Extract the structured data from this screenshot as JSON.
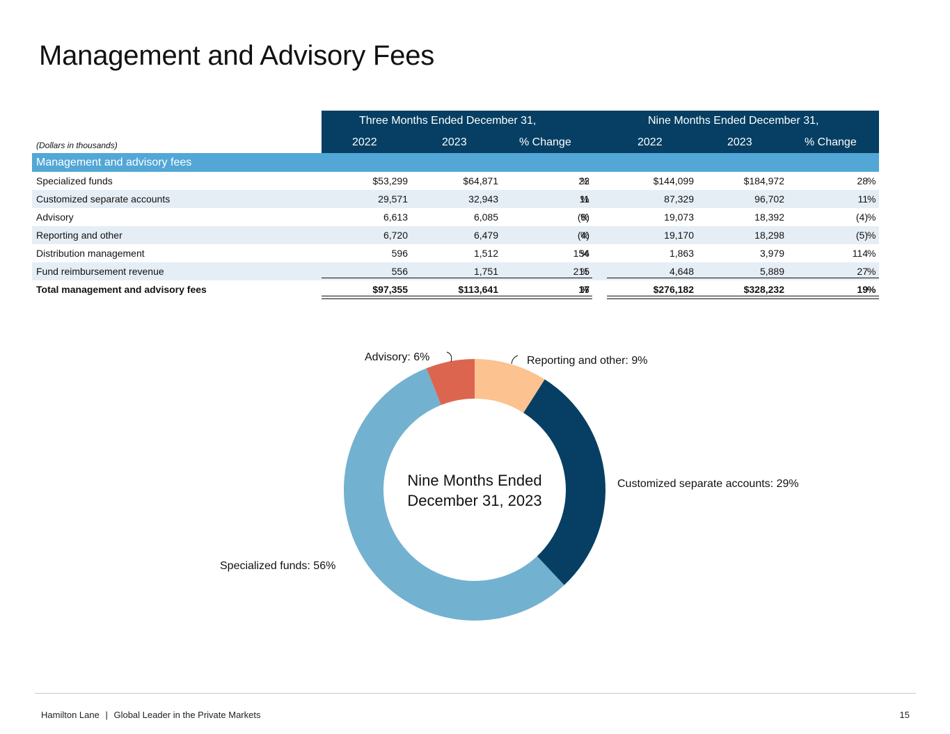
{
  "title": "Management and Advisory Fees",
  "table": {
    "group_three": "Three Months Ended December 31,",
    "group_nine": "Nine Months Ended December 31,",
    "units_note": "(Dollars in thousands)",
    "col_headers": [
      "2022",
      "2023",
      "% Change",
      "2022",
      "2023",
      "% Change"
    ],
    "section_label": "Management and advisory fees",
    "pct_sign": "%",
    "rows": [
      {
        "label": "Specialized funds",
        "q22": "$53,299",
        "q23": "$64,871",
        "qchg": "22",
        "n22": "$144,099",
        "n23": "$184,972",
        "nchg": "28"
      },
      {
        "label": "Customized separate accounts",
        "q22": "29,571",
        "q23": "32,943",
        "qchg": "11",
        "n22": "87,329",
        "n23": "96,702",
        "nchg": "11"
      },
      {
        "label": "Advisory",
        "q22": "6,613",
        "q23": "6,085",
        "qchg": "(8)",
        "n22": "19,073",
        "n23": "18,392",
        "nchg": "(4)"
      },
      {
        "label": "Reporting and other",
        "q22": "6,720",
        "q23": "6,479",
        "qchg": "(4)",
        "n22": "19,170",
        "n23": "18,298",
        "nchg": "(5)"
      },
      {
        "label": "Distribution management",
        "q22": "596",
        "q23": "1,512",
        "qchg": "154",
        "n22": "1,863",
        "n23": "3,979",
        "nchg": "114"
      },
      {
        "label": "Fund reimbursement revenue",
        "q22": "556",
        "q23": "1,751",
        "qchg": "215",
        "n22": "4,648",
        "n23": "5,889",
        "nchg": "27"
      }
    ],
    "total": {
      "label": "Total management and advisory fees",
      "q22": "$97,355",
      "q23": "$113,641",
      "qchg": "17",
      "n22": "$276,182",
      "n23": "$328,232",
      "nchg": "19"
    }
  },
  "chart_data": {
    "type": "pie",
    "title": "Nine Months Ended December 31, 2023",
    "center_label_line1": "Nine Months Ended",
    "center_label_line2": "December 31, 2023",
    "slices": [
      {
        "name": "Reporting and other",
        "value": 9,
        "label": "Reporting and other: 9%",
        "color": "#fcc290"
      },
      {
        "name": "Customized separate accounts",
        "value": 29,
        "label": "Customized separate accounts: 29%",
        "color": "#063f63"
      },
      {
        "name": "Specialized funds",
        "value": 56,
        "label": "Specialized funds: 56%",
        "color": "#73b1d0"
      },
      {
        "name": "Advisory",
        "value": 6,
        "label": "Advisory: 6%",
        "color": "#dc6550"
      }
    ]
  },
  "footer": {
    "company": "Hamilton Lane",
    "separator": "|",
    "tagline": "Global Leader in the Private Markets",
    "page_number": "15"
  },
  "colors": {
    "navy": "#063f63",
    "section_blue": "#52a7d6",
    "row_alt": "#e6eef5"
  }
}
